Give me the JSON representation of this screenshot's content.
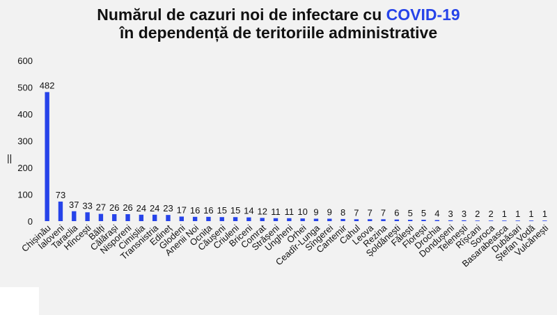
{
  "title": {
    "line1_prefix": "Numărul de cazuri noi de infectare cu ",
    "line1_accent": "COVID-19",
    "line2": "în dependență de teritoriile administrative"
  },
  "colors": {
    "bar": "#2643e9",
    "accent": "#2643e9",
    "background": "#f2f2f2",
    "text": "#111111"
  },
  "axis_marker": "||",
  "chart_data": {
    "type": "bar",
    "title": "Numărul de cazuri noi de infectare cu COVID-19 în dependență de teritoriile administrative",
    "xlabel": "",
    "ylabel": "",
    "ylim": [
      0,
      600
    ],
    "yticks": [
      0,
      100,
      200,
      300,
      400,
      500,
      600
    ],
    "grid": false,
    "legend": "none",
    "categories": [
      "Chișinău",
      "Ialoveni",
      "Taraclia",
      "Hîncești",
      "Bălți",
      "Călărași",
      "Nisporeni",
      "Cimișlia",
      "Transnistria",
      "Edineț",
      "Glodeni",
      "Anenii Noi",
      "Ocnița",
      "Căușeni",
      "Criuleni",
      "Briceni",
      "Comrat",
      "Strășeni",
      "Ungheni",
      "Orhei",
      "Ceadîr-Lunga",
      "Sîngerei",
      "Cantemir",
      "Cahul",
      "Leova",
      "Rezina",
      "Șoldănești",
      "Fălești",
      "Florești",
      "Drochia",
      "Dondușeni",
      "Telenești",
      "Rîșcani",
      "Soroca",
      "Basarabeasca",
      "Dubăsari",
      "Ștefan Vodă",
      "Vulcănești"
    ],
    "values": [
      482,
      73,
      37,
      33,
      27,
      26,
      26,
      24,
      24,
      23,
      17,
      16,
      16,
      15,
      15,
      14,
      12,
      11,
      11,
      10,
      9,
      9,
      8,
      7,
      7,
      7,
      6,
      5,
      5,
      4,
      3,
      3,
      2,
      2,
      1,
      1,
      1,
      1
    ]
  }
}
